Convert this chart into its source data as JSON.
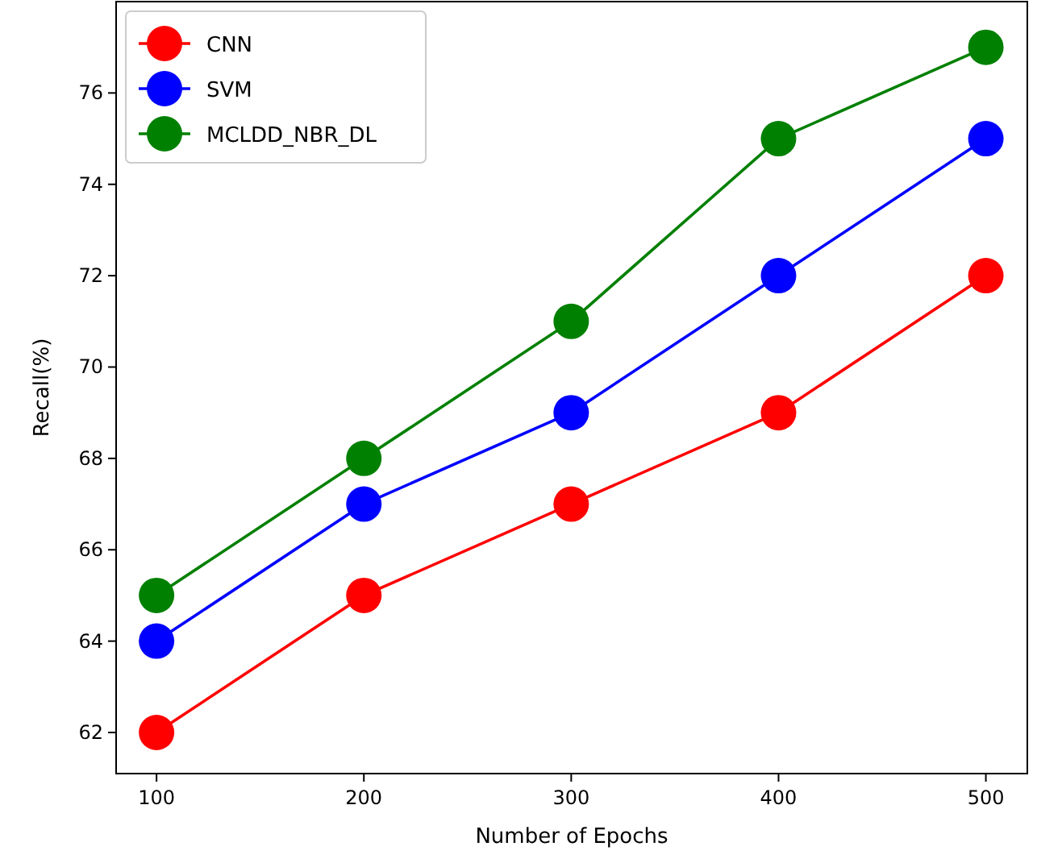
{
  "chart_data": {
    "type": "line",
    "xlabel": "Number of Epochs",
    "ylabel": "Recall(%)",
    "x": [
      100,
      200,
      300,
      400,
      500
    ],
    "series": [
      {
        "name": "CNN",
        "color": "#ff0000",
        "values": [
          62,
          65,
          67,
          69,
          72
        ]
      },
      {
        "name": "SVM",
        "color": "#0000ff",
        "values": [
          64,
          67,
          69,
          72,
          75
        ]
      },
      {
        "name": "MCLDD_NBR_DL",
        "color": "#008000",
        "values": [
          65,
          68,
          71,
          75,
          77
        ]
      }
    ],
    "xlim": [
      80.5,
      520
    ],
    "xticks": [
      100,
      200,
      300,
      400,
      500
    ],
    "ylim": [
      61.1,
      78
    ],
    "yticks": [
      62,
      64,
      66,
      68,
      70,
      72,
      74,
      76
    ],
    "marker": "circle",
    "line_style": "solid",
    "grid": false,
    "legend": "top left"
  }
}
